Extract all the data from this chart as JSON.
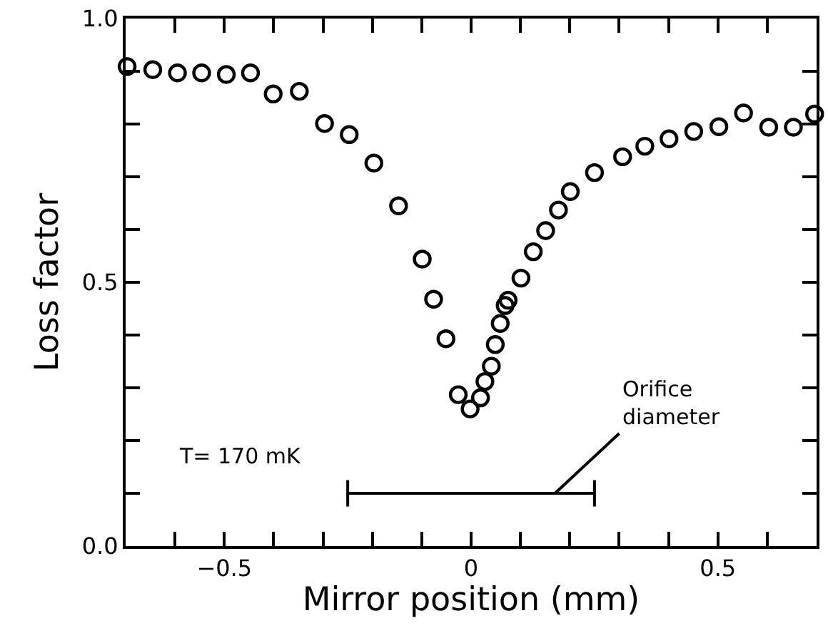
{
  "chart_data": {
    "type": "scatter",
    "xlabel": "Mirror position (mm)",
    "ylabel": "Loss factor",
    "xlim": [
      -0.7,
      0.7
    ],
    "ylim": [
      0.0,
      1.0
    ],
    "xticks": [
      {
        "value": -0.7,
        "label": null
      },
      {
        "value": -0.6,
        "label": null
      },
      {
        "value": -0.5,
        "label": "−0.5"
      },
      {
        "value": -0.4,
        "label": null
      },
      {
        "value": -0.3,
        "label": null
      },
      {
        "value": -0.2,
        "label": null
      },
      {
        "value": -0.1,
        "label": null
      },
      {
        "value": 0,
        "label": "0"
      },
      {
        "value": 0.1,
        "label": null
      },
      {
        "value": 0.2,
        "label": null
      },
      {
        "value": 0.3,
        "label": null
      },
      {
        "value": 0.4,
        "label": null
      },
      {
        "value": 0.5,
        "label": "0.5"
      },
      {
        "value": 0.6,
        "label": null
      },
      {
        "value": 0.7,
        "label": null
      }
    ],
    "yticks": [
      {
        "value": 0,
        "label": "0.0"
      },
      {
        "value": 0.1,
        "label": null
      },
      {
        "value": 0.2,
        "label": null
      },
      {
        "value": 0.3,
        "label": null
      },
      {
        "value": 0.4,
        "label": null
      },
      {
        "value": 0.5,
        "label": "0.5"
      },
      {
        "value": 0.6,
        "label": null
      },
      {
        "value": 0.7,
        "label": null
      },
      {
        "value": 0.8,
        "label": null
      },
      {
        "value": 0.9,
        "label": null
      },
      {
        "value": 1.0,
        "label": "1.0"
      }
    ],
    "marker": "circle",
    "series": [
      {
        "color": "#000000",
        "x": [
          -0.697,
          -0.645,
          -0.595,
          -0.546,
          -0.496,
          -0.447,
          -0.401,
          -0.348,
          -0.297,
          -0.247,
          -0.197,
          -0.147,
          -0.099,
          -0.076,
          -0.051,
          -0.026,
          -0.002,
          0.019,
          0.028,
          0.041,
          0.049,
          0.059,
          0.069,
          0.075,
          0.101,
          0.126,
          0.151,
          0.177,
          0.201,
          0.25,
          0.307,
          0.352,
          0.401,
          0.451,
          0.502,
          0.552,
          0.603,
          0.653,
          0.696
        ],
        "values": [
          0.909,
          0.903,
          0.897,
          0.897,
          0.894,
          0.897,
          0.857,
          0.862,
          0.801,
          0.78,
          0.726,
          0.645,
          0.544,
          0.468,
          0.393,
          0.287,
          0.26,
          0.281,
          0.312,
          0.341,
          0.382,
          0.422,
          0.456,
          0.466,
          0.508,
          0.558,
          0.598,
          0.637,
          0.672,
          0.708,
          0.738,
          0.758,
          0.772,
          0.786,
          0.795,
          0.821,
          0.794,
          0.794,
          0.819
        ]
      },
      {
        "type": "line",
        "color": "#000000",
        "marker": "none",
        "x": [
          -0.25,
          0.25
        ],
        "values": [
          0.1,
          0.1
        ],
        "errors": [
          0.025,
          0.025
        ]
      }
    ],
    "annotations": [
      "T= 170 mK",
      {
        "text": "Orifice\ndiameter",
        "x": 0.17,
        "y": 0.1
      }
    ]
  }
}
